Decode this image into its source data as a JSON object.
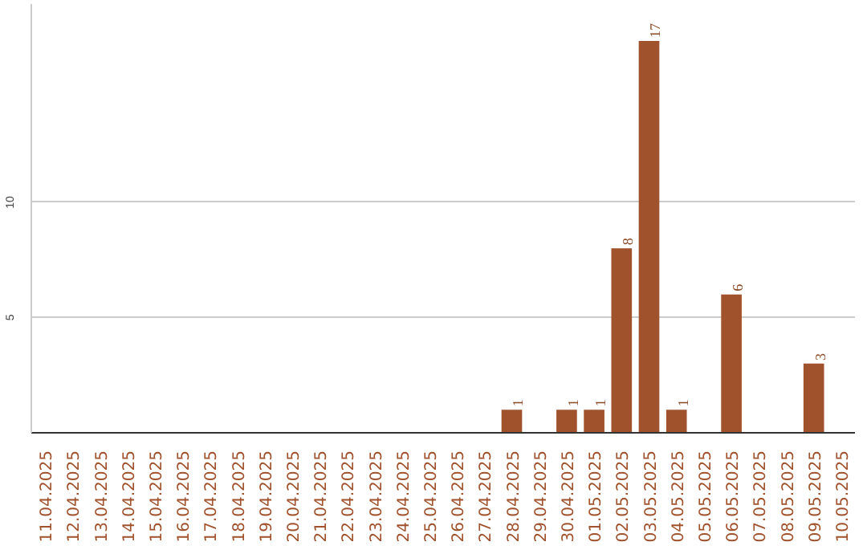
{
  "chart_data": {
    "type": "bar",
    "categories": [
      "11.04.2025",
      "12.04.2025",
      "13.04.2025",
      "14.04.2025",
      "15.04.2025",
      "16.04.2025",
      "17.04.2025",
      "18.04.2025",
      "19.04.2025",
      "20.04.2025",
      "21.04.2025",
      "22.04.2025",
      "23.04.2025",
      "24.04.2025",
      "25.04.2025",
      "26.04.2025",
      "27.04.2025",
      "28.04.2025",
      "29.04.2025",
      "30.04.2025",
      "01.05.2025",
      "02.05.2025",
      "03.05.2025",
      "04.05.2025",
      "05.05.2025",
      "06.05.2025",
      "07.05.2025",
      "08.05.2025",
      "09.05.2025",
      "10.05.2025"
    ],
    "values": [
      0,
      0,
      0,
      0,
      0,
      0,
      0,
      0,
      0,
      0,
      0,
      0,
      0,
      0,
      0,
      0,
      0,
      1,
      0,
      1,
      1,
      8,
      17,
      1,
      0,
      6,
      0,
      0,
      3,
      0
    ],
    "value_labels": [
      null,
      null,
      null,
      null,
      null,
      null,
      null,
      null,
      null,
      null,
      null,
      null,
      null,
      null,
      null,
      null,
      null,
      "1",
      null,
      "1",
      "1",
      "8",
      "17",
      "1",
      null,
      "6",
      null,
      null,
      "3",
      null
    ],
    "color": "#a0522d",
    "ylim": [
      0,
      18.6
    ],
    "yticks": [
      5,
      10
    ],
    "grid": "y"
  }
}
